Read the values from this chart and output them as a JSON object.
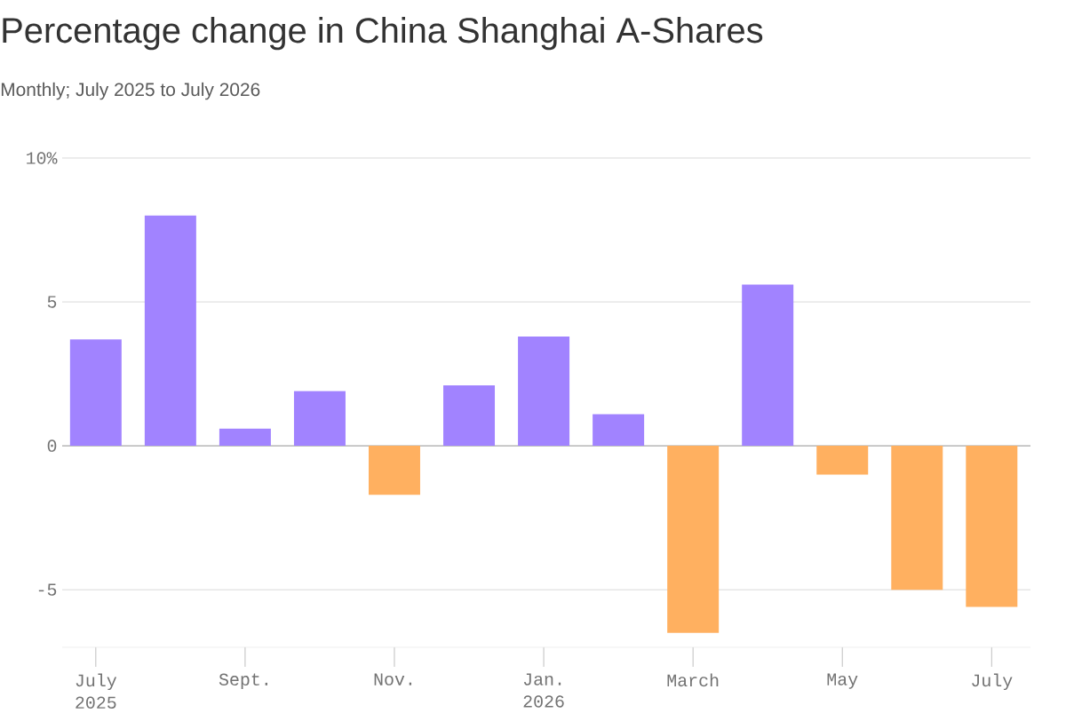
{
  "chart_data": {
    "type": "bar",
    "title": "Percentage change in China Shanghai A-Shares",
    "subtitle": "Monthly; July 2025 to July 2026",
    "categories": [
      "July 2025",
      null,
      "Sept.",
      null,
      "Nov.",
      null,
      "Jan. 2026",
      null,
      "March",
      null,
      "May",
      null,
      "July"
    ],
    "values": [
      3.7,
      8.0,
      0.6,
      1.9,
      -1.7,
      2.1,
      3.8,
      1.1,
      -6.5,
      5.6,
      -1.0,
      -5.0,
      -5.6
    ],
    "colors": [
      "#a183ff",
      "#a183ff",
      "#a183ff",
      "#a183ff",
      "#ffb060",
      "#a183ff",
      "#a183ff",
      "#a183ff",
      "#ffb060",
      "#a183ff",
      "#ffb060",
      "#ffb060",
      "#ffb060"
    ],
    "ylim": [
      -7,
      10
    ],
    "yticks": [
      -5,
      0,
      5,
      {
        "value": 10,
        "label": "10%"
      }
    ],
    "grid": "y"
  }
}
